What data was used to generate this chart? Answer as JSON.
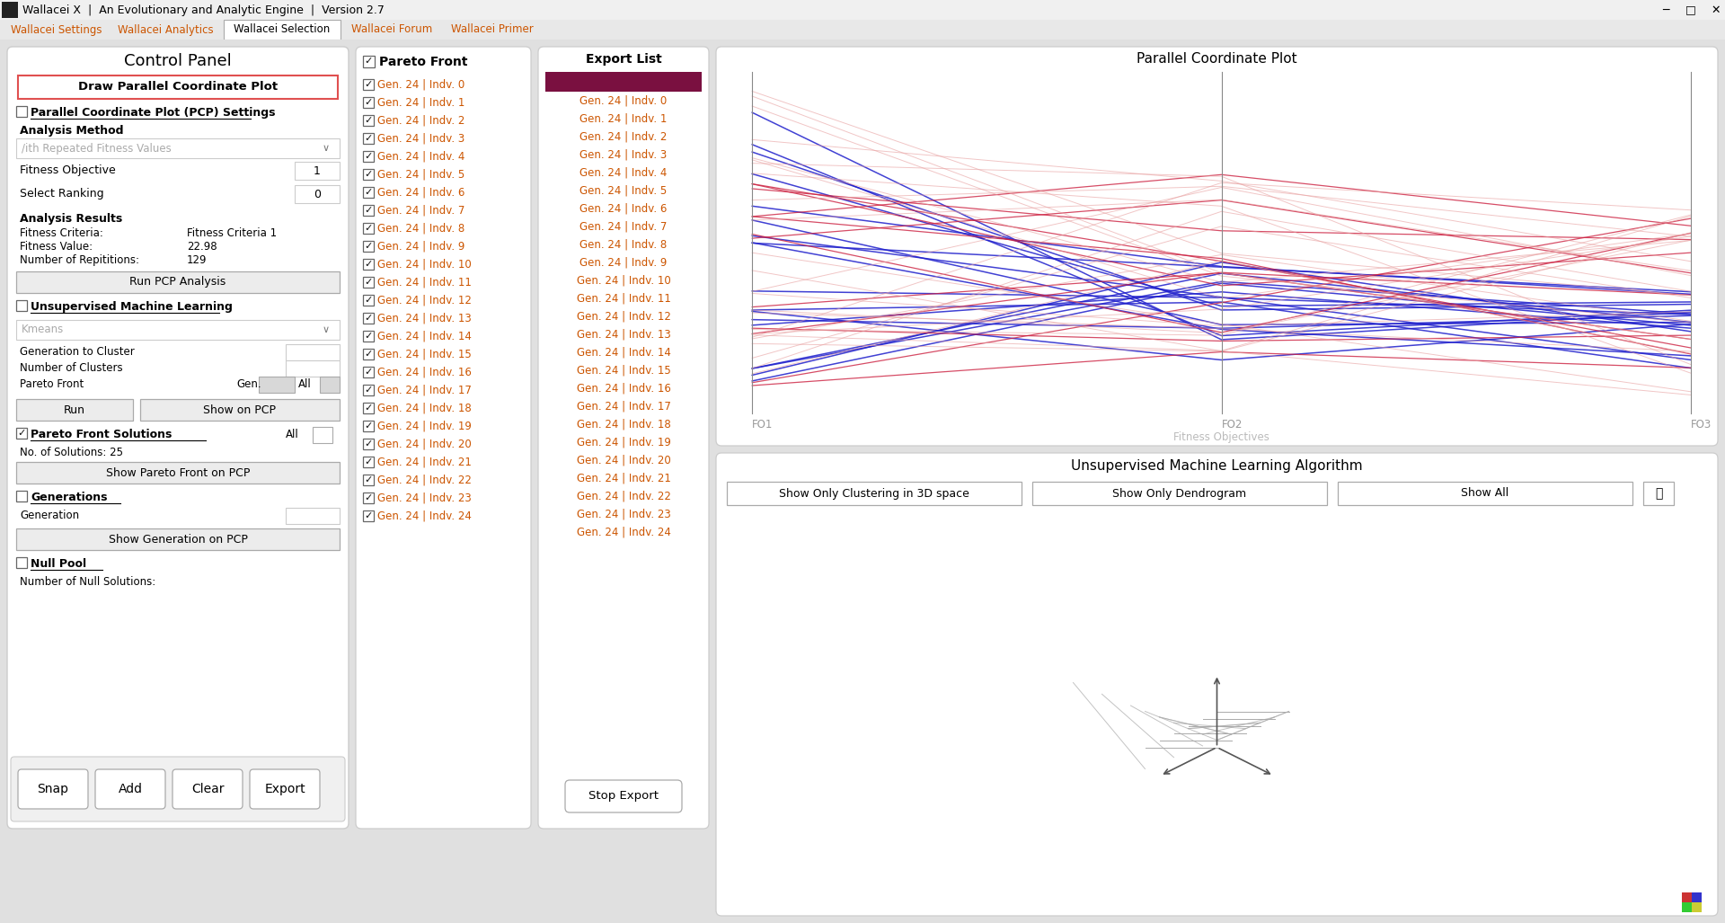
{
  "title_bar": "Wallacei X  |  An Evolutionary and Analytic Engine  |  Version 2.7",
  "tabs": [
    "Wallacei Settings",
    "Wallacei Analytics",
    "Wallacei Selection",
    "Wallacei Forum",
    "Wallacei Primer"
  ],
  "active_tab": "Wallacei Selection",
  "control_panel_title": "Control Panel",
  "draw_button": "Draw Parallel Coordinate Plot",
  "pcp_section": "Parallel Coordinate Plot (PCP) Settings",
  "analysis_method_label": "Analysis Method",
  "analysis_method_value": "/ith Repeated Fitness Values",
  "fitness_objective_label": "Fitness Objective",
  "fitness_objective_value": "1",
  "select_ranking_label": "Select Ranking",
  "select_ranking_value": "0",
  "analysis_results_title": "Analysis Results",
  "fitness_criteria_label": "Fitness Criteria:",
  "fitness_criteria_value": "Fitness Criteria 1",
  "fitness_value_label": "Fitness Value:",
  "fitness_value_value": "22.98",
  "repetitions_label": "Number of Repititions:",
  "repetitions_value": "129",
  "run_pcp_button": "Run PCP Analysis",
  "unsupervised_section": "Unsupervised Machine Learning",
  "kmeans_value": "Kmeans",
  "gen_cluster_label": "Generation to Cluster",
  "num_clusters_label": "Number of Clusters",
  "pareto_front_label": "Pareto Front",
  "gen_label": "Gen.",
  "all_label": "All",
  "run_button": "Run",
  "show_pcp_button": "Show on PCP",
  "pareto_front_solutions": "Pareto Front Solutions",
  "num_solutions_label": "No. of Solutions: 25",
  "show_pareto_button": "Show Pareto Front on PCP",
  "generations_section": "Generations",
  "generation_label": "Generation",
  "show_gen_button": "Show Generation on PCP",
  "null_pool_section": "Null Pool",
  "null_solutions_label": "Number of Null Solutions:",
  "bottom_buttons": [
    "Snap",
    "Add",
    "Clear",
    "Export"
  ],
  "pareto_front_title": "Pareto Front",
  "pareto_items": [
    "Gen. 24 | Indv. 0",
    "Gen. 24 | Indv. 1",
    "Gen. 24 | Indv. 2",
    "Gen. 24 | Indv. 3",
    "Gen. 24 | Indv. 4",
    "Gen. 24 | Indv. 5",
    "Gen. 24 | Indv. 6",
    "Gen. 24 | Indv. 7",
    "Gen. 24 | Indv. 8",
    "Gen. 24 | Indv. 9",
    "Gen. 24 | Indv. 10",
    "Gen. 24 | Indv. 11",
    "Gen. 24 | Indv. 12",
    "Gen. 24 | Indv. 13",
    "Gen. 24 | Indv. 14",
    "Gen. 24 | Indv. 15",
    "Gen. 24 | Indv. 16",
    "Gen. 24 | Indv. 17",
    "Gen. 24 | Indv. 18",
    "Gen. 24 | Indv. 19",
    "Gen. 24 | Indv. 20",
    "Gen. 24 | Indv. 21",
    "Gen. 24 | Indv. 22",
    "Gen. 24 | Indv. 23",
    "Gen. 24 | Indv. 24"
  ],
  "export_list_title": "Export List",
  "export_items": [
    "Gen. 24 | Indv. 0",
    "Gen. 24 | Indv. 1",
    "Gen. 24 | Indv. 2",
    "Gen. 24 | Indv. 3",
    "Gen. 24 | Indv. 4",
    "Gen. 24 | Indv. 5",
    "Gen. 24 | Indv. 6",
    "Gen. 24 | Indv. 7",
    "Gen. 24 | Indv. 8",
    "Gen. 24 | Indv. 9",
    "Gen. 24 | Indv. 10",
    "Gen. 24 | Indv. 11",
    "Gen. 24 | Indv. 12",
    "Gen. 24 | Indv. 13",
    "Gen. 24 | Indv. 14",
    "Gen. 24 | Indv. 15",
    "Gen. 24 | Indv. 16",
    "Gen. 24 | Indv. 17",
    "Gen. 24 | Indv. 18",
    "Gen. 24 | Indv. 19",
    "Gen. 24 | Indv. 20",
    "Gen. 24 | Indv. 21",
    "Gen. 24 | Indv. 22",
    "Gen. 24 | Indv. 23",
    "Gen. 24 | Indv. 24"
  ],
  "stop_export_button": "Stop Export",
  "pcp_plot_title": "Parallel Coordinate Plot",
  "fitness_objectives": [
    "FO1",
    "FO2",
    "FO3"
  ],
  "fitness_objectives_label": "Fitness Objectives",
  "unsupervised_title": "Unsupervised Machine Learning Algorithm",
  "show_clustering_button": "Show Only Clustering in 3D space",
  "show_dendrogram_button": "Show Only Dendrogram",
  "show_all_button": "Show All",
  "orange_color": "#cc5500",
  "export_bar_color": "#7a1040",
  "line_color_red": "#e06080",
  "line_color_pink": "#e8a0a0",
  "line_color_blue": "#2020cc",
  "line_color_dark_blue": "#4040aa",
  "line_color_crimson": "#cc2040"
}
